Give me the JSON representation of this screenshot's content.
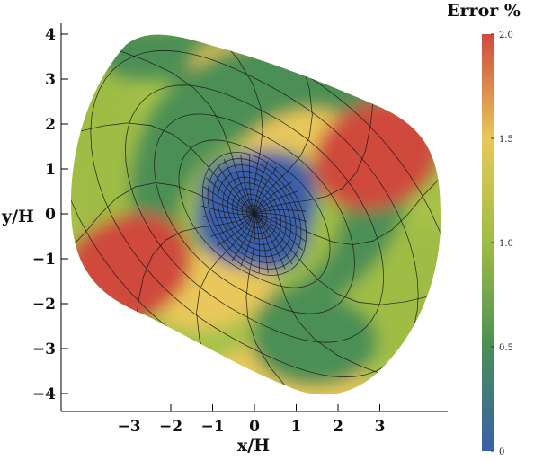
{
  "chart_data": {
    "type": "heatmap",
    "xlabel": "x/H",
    "ylabel": "y/H",
    "xlim": [
      -4.6,
      4.6
    ],
    "ylim": [
      -4.3,
      4.2
    ],
    "x_ticks": [
      -3,
      -2,
      -1,
      0,
      1,
      2,
      3
    ],
    "y_ticks": [
      4,
      3,
      2,
      1,
      0,
      -1,
      -2,
      -3,
      -4
    ],
    "x_tick_labels": [
      "−3",
      "−2",
      "−1",
      "0",
      "1",
      "2",
      "3"
    ],
    "y_tick_labels": [
      "4",
      "3",
      "2",
      "1",
      "0",
      "−1",
      "−2",
      "−3",
      "−4"
    ],
    "colorbar": {
      "title": "Error %",
      "range": [
        0,
        2.0
      ],
      "ticks": [
        0,
        0.5,
        1.0,
        1.5,
        2.0
      ],
      "tick_labels": [
        "0",
        "0.5",
        "1.0",
        "1.5",
        "2.0"
      ],
      "colors": [
        "#3a5fa8",
        "#4b8f55",
        "#9fbd45",
        "#e8c85a",
        "#cf4a3e"
      ]
    },
    "hot_spots": [
      {
        "x": 2.9,
        "y": 1.3,
        "value": 2.0
      },
      {
        "x": -3.0,
        "y": -1.2,
        "value": 2.0
      }
    ],
    "minimum": {
      "x": 0,
      "y": 0,
      "value": 0
    },
    "grid_lines": true
  }
}
